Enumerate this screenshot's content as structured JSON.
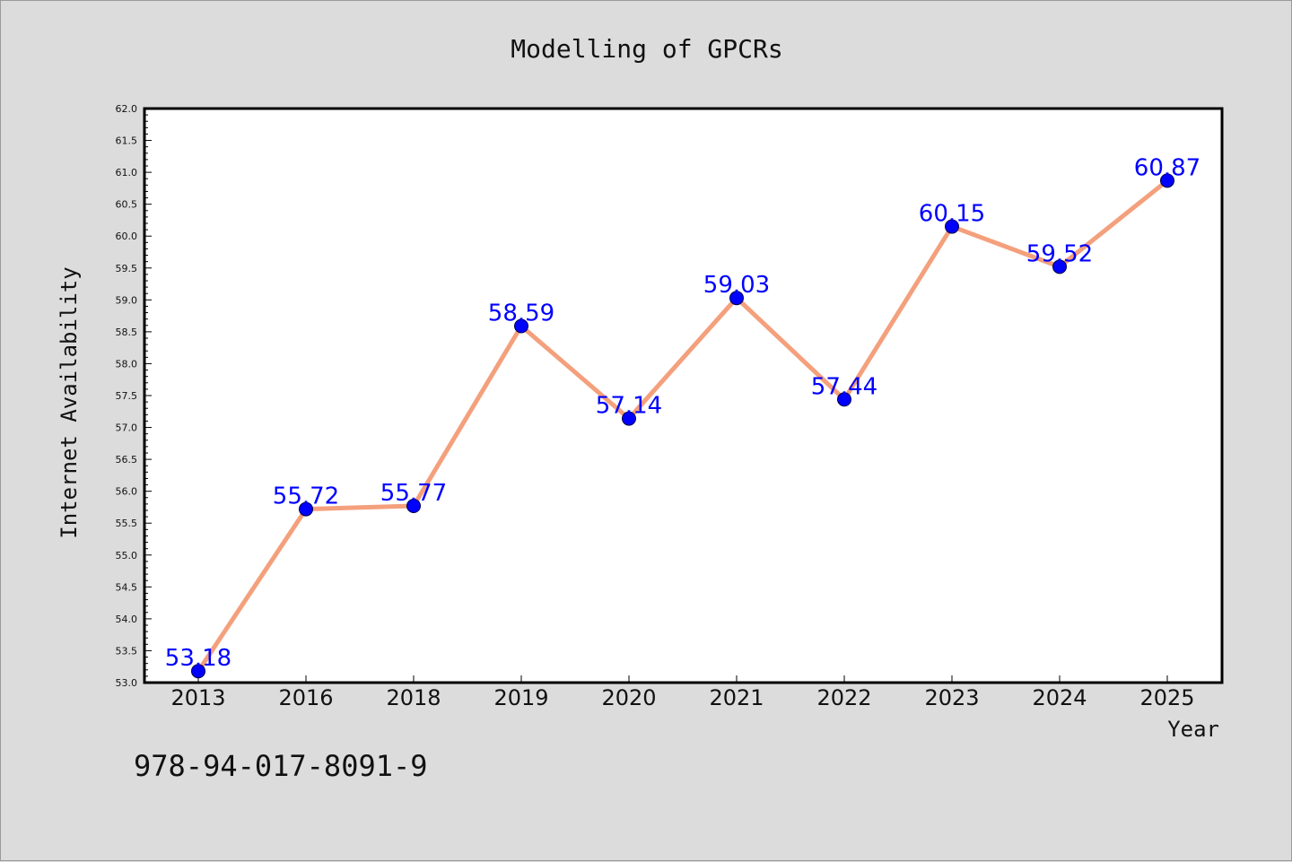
{
  "figure": {
    "isbn_text": "978-94-017-8091-9"
  },
  "chart_data": {
    "type": "line",
    "title": "Modelling of GPCRs",
    "xlabel": "Year",
    "ylabel": "Internet Availability",
    "categories": [
      "2013",
      "2016",
      "2018",
      "2019",
      "2020",
      "2021",
      "2022",
      "2023",
      "2024",
      "2025"
    ],
    "series": [
      {
        "values": [
          53.18,
          55.72,
          55.77,
          58.59,
          57.14,
          59.03,
          57.44,
          60.15,
          59.52,
          60.87
        ],
        "line_color": "#f4a07c",
        "marker_color": "#0000ff"
      }
    ],
    "data_labels": [
      "53.18",
      "55.72",
      "55.77",
      "58.59",
      "57.14",
      "59.03",
      "57.44",
      "60.15",
      "59.52",
      "60.87"
    ],
    "ylim": [
      53.0,
      62.0
    ],
    "yticks": [
      "53.0",
      "53.5",
      "54.0",
      "54.5",
      "55.0",
      "55.5",
      "56.0",
      "56.5",
      "57.0",
      "57.5",
      "58.0",
      "58.5",
      "59.0",
      "59.5",
      "60.0",
      "60.5",
      "61.0",
      "61.5",
      "62.0"
    ],
    "grid": false,
    "legend": "none",
    "data_label_color": "#0000ff"
  }
}
